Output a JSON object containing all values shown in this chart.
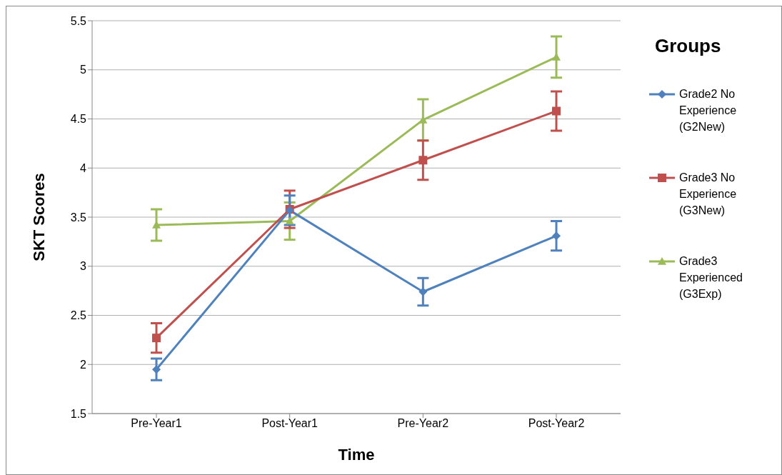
{
  "chart_data": {
    "type": "line",
    "xlabel": "Time",
    "ylabel": "SKT Scores",
    "legend_title": "Groups",
    "categories": [
      "Pre-Year1",
      "Post-Year1",
      "Pre-Year2",
      "Post-Year2"
    ],
    "ylim": [
      1.5,
      5.5
    ],
    "yticks": [
      1.5,
      2,
      2.5,
      3,
      3.5,
      4,
      4.5,
      5,
      5.5
    ],
    "grid": "y",
    "legend": "right",
    "series": [
      {
        "name": "Grade2 No Experience (G2New)",
        "color": "#4f81bd",
        "marker": "diamond",
        "values": [
          1.95,
          3.57,
          2.74,
          3.31
        ],
        "errors": [
          0.11,
          0.15,
          0.14,
          0.15
        ]
      },
      {
        "name": "Grade3 No Experience (G3New)",
        "color": "#c0504d",
        "marker": "square",
        "values": [
          2.27,
          3.58,
          4.08,
          4.58
        ],
        "errors": [
          0.15,
          0.19,
          0.2,
          0.2
        ]
      },
      {
        "name": "Grade3 Experienced (G3Exp)",
        "color": "#9bbb59",
        "marker": "triangle",
        "values": [
          3.42,
          3.46,
          4.49,
          5.13
        ],
        "errors": [
          0.16,
          0.19,
          0.21,
          0.21
        ]
      }
    ]
  }
}
